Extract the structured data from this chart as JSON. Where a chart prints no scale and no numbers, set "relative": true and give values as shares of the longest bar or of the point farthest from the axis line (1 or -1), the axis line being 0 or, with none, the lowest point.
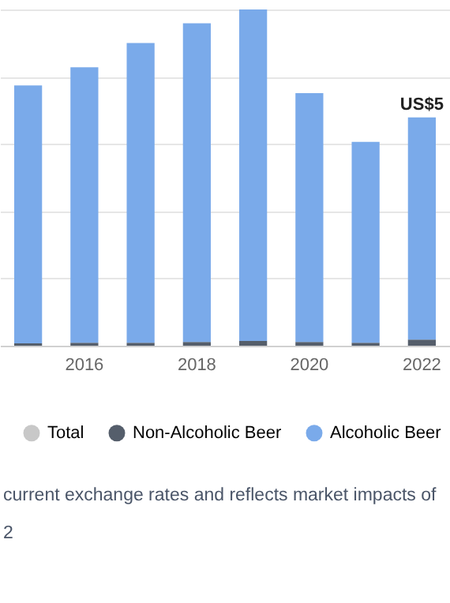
{
  "chart_data": {
    "type": "bar",
    "stacked": true,
    "relative": true,
    "grid": "y",
    "legend": "bottom",
    "categories": [
      null,
      "2016",
      null,
      "2018",
      null,
      "2020",
      null,
      "2022"
    ],
    "series": [
      {
        "name": "Total",
        "color": "#c8c8c8",
        "values": [
          null,
          null,
          null,
          null,
          null,
          null,
          null,
          null
        ]
      },
      {
        "name": "Non-Alcoholic Beer",
        "color": "#555e6b",
        "values": [
          0.007,
          0.009,
          0.009,
          0.011,
          0.014,
          0.011,
          0.009,
          0.018
        ]
      },
      {
        "name": "Alcoholic Beer",
        "color": "#7aaaea",
        "values": [
          0.767,
          0.819,
          0.891,
          0.948,
          0.986,
          0.74,
          0.597,
          0.661
        ]
      }
    ],
    "annotations": [
      {
        "text": "US$5",
        "x": "2022",
        "y": 0.679
      },
      "current exchange rates and reflects market impacts of",
      "2"
    ]
  }
}
